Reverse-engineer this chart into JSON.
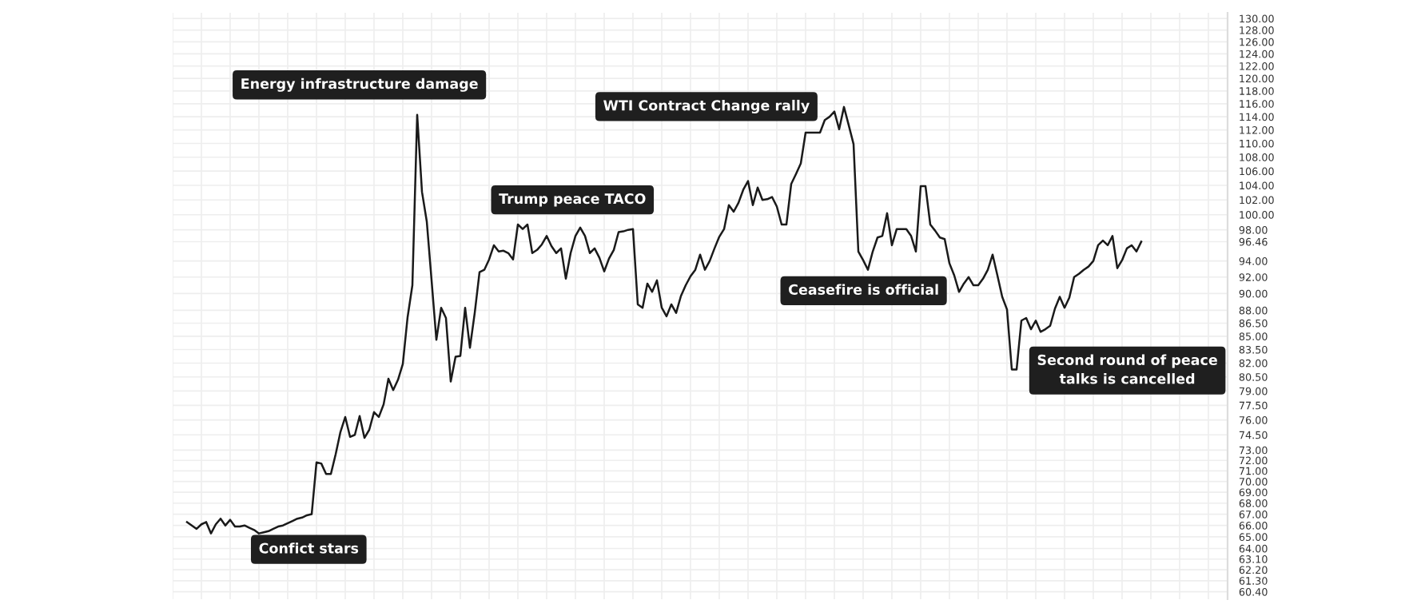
{
  "chart_data": {
    "type": "line",
    "log": true,
    "grid": true,
    "marker": "none",
    "line_style": "solid",
    "categories": [
      null,
      null,
      null,
      null,
      null,
      null,
      null,
      null,
      null,
      null,
      null,
      null,
      null,
      null,
      null,
      null,
      null,
      null,
      null,
      null,
      null,
      null,
      null,
      null,
      null,
      null,
      null,
      null,
      null,
      null,
      null,
      null,
      null,
      null,
      null,
      null,
      null,
      null,
      null,
      null,
      null,
      null,
      null,
      null,
      null,
      null,
      null,
      null,
      null,
      null,
      null,
      null,
      null,
      null,
      null,
      null,
      null,
      null,
      null,
      null,
      null,
      null,
      null,
      null,
      null,
      null,
      null,
      null,
      null,
      null,
      null,
      null,
      null,
      null,
      null,
      null,
      null,
      null,
      null,
      null,
      null,
      null,
      null,
      null,
      null,
      null,
      null,
      null,
      null,
      null,
      null,
      null,
      null,
      null,
      null,
      null,
      null,
      null,
      null,
      null,
      null,
      null,
      null,
      null,
      null,
      null,
      null,
      null,
      null,
      null,
      null,
      null,
      null,
      null,
      null,
      null,
      null,
      null,
      null,
      null,
      null,
      null,
      null,
      null,
      null,
      null,
      null,
      null,
      null,
      null,
      null,
      null,
      null,
      null,
      null,
      null,
      null,
      null,
      null,
      null,
      null,
      null,
      null,
      null,
      null,
      null,
      null,
      null,
      null,
      null,
      null,
      null,
      null,
      null,
      null,
      null,
      null,
      null,
      null,
      null,
      null,
      null,
      null,
      null,
      null,
      null,
      null,
      null,
      null,
      null,
      null,
      null,
      null,
      null,
      null,
      null,
      null,
      null,
      null,
      null,
      null,
      null,
      null,
      null,
      null,
      null,
      null,
      null,
      null,
      null,
      null,
      null,
      null,
      null,
      null,
      null,
      null,
      null,
      null,
      null
    ],
    "series": [
      {
        "color": "#1a1a1a",
        "values": [
          66.3,
          66.0,
          65.7,
          66.1,
          66.3,
          65.3,
          66.1,
          66.6,
          66.0,
          66.5,
          65.9,
          65.9,
          66.0,
          65.8,
          65.6,
          65.3,
          65.4,
          65.5,
          65.7,
          65.9,
          66.0,
          66.2,
          66.4,
          66.6,
          66.7,
          66.9,
          67.0,
          71.8,
          71.7,
          70.7,
          70.7,
          72.6,
          74.8,
          76.3,
          74.3,
          74.5,
          76.4,
          74.2,
          75.0,
          76.8,
          76.3,
          77.6,
          80.3,
          79.1,
          80.2,
          81.9,
          87.2,
          91.0,
          114.3,
          103.1,
          99.1,
          91.6,
          84.6,
          88.3,
          87.1,
          80.0,
          82.7,
          82.8,
          88.3,
          83.7,
          87.7,
          92.6,
          92.9,
          94.2,
          96.0,
          95.2,
          95.3,
          95.0,
          94.2,
          98.7,
          98.1,
          98.7,
          95.0,
          95.4,
          96.1,
          97.2,
          95.9,
          95.0,
          95.6,
          91.8,
          95.0,
          97.2,
          98.3,
          97.2,
          95.0,
          95.6,
          94.4,
          92.7,
          94.3,
          95.4,
          97.7,
          97.8,
          98.0,
          98.1,
          88.7,
          88.3,
          91.2,
          90.2,
          91.6,
          88.3,
          87.3,
          88.7,
          87.7,
          89.7,
          91.0,
          92.1,
          92.9,
          94.8,
          92.9,
          94.0,
          95.6,
          97.1,
          98.1,
          101.3,
          100.4,
          101.6,
          103.4,
          104.6,
          101.3,
          103.7,
          102.0,
          102.1,
          102.4,
          101.1,
          98.7,
          98.7,
          104.2,
          105.6,
          107.1,
          111.6,
          111.6,
          111.6,
          111.6,
          113.5,
          114.0,
          114.8,
          112.1,
          115.5,
          112.7,
          109.9,
          95.2,
          94.1,
          92.9,
          95.2,
          97.0,
          97.2,
          100.2,
          96.0,
          98.1,
          98.1,
          98.1,
          97.2,
          95.2,
          103.9,
          103.9,
          98.7,
          97.9,
          97.0,
          96.8,
          93.7,
          92.2,
          90.2,
          91.2,
          92.0,
          91.0,
          91.0,
          91.8,
          92.9,
          94.8,
          92.2,
          89.6,
          88.1,
          81.3,
          81.3,
          86.8,
          87.1,
          85.8,
          86.8,
          85.5,
          85.8,
          86.2,
          88.2,
          89.6,
          88.3,
          89.5,
          92.0,
          92.4,
          92.9,
          93.3,
          94.0,
          96.0,
          96.6,
          96.0,
          97.2,
          93.1,
          94.1,
          95.6,
          96.0,
          95.2,
          96.46
        ]
      }
    ],
    "ylim": [
      59.8,
      131
    ],
    "yticks": [
      {
        "value": 130,
        "label": "130.00"
      },
      {
        "value": 128,
        "label": "128.00"
      },
      {
        "value": 126,
        "label": "126.00"
      },
      {
        "value": 124,
        "label": "124.00"
      },
      {
        "value": 122,
        "label": "122.00"
      },
      {
        "value": 120,
        "label": "120.00"
      },
      {
        "value": 118,
        "label": "118.00"
      },
      {
        "value": 116,
        "label": "116.00"
      },
      {
        "value": 114,
        "label": "114.00"
      },
      {
        "value": 112,
        "label": "112.00"
      },
      {
        "value": 110,
        "label": "110.00"
      },
      {
        "value": 108,
        "label": "108.00"
      },
      {
        "value": 106,
        "label": "106.00"
      },
      {
        "value": 104,
        "label": "104.00"
      },
      {
        "value": 102,
        "label": "102.00"
      },
      {
        "value": 100,
        "label": "100.00"
      },
      {
        "value": 98,
        "label": "98.00"
      },
      {
        "value": 96.46,
        "label": "96.46"
      },
      {
        "value": 94,
        "label": "94.00"
      },
      {
        "value": 92,
        "label": "92.00"
      },
      {
        "value": 90,
        "label": "90.00"
      },
      {
        "value": 88,
        "label": "88.00"
      },
      {
        "value": 86.5,
        "label": "86.50"
      },
      {
        "value": 85,
        "label": "85.00"
      },
      {
        "value": 83.5,
        "label": "83.50"
      },
      {
        "value": 82,
        "label": "82.00"
      },
      {
        "value": 80.5,
        "label": "80.50"
      },
      {
        "value": 79,
        "label": "79.00"
      },
      {
        "value": 77.5,
        "label": "77.50"
      },
      {
        "value": 76,
        "label": "76.00"
      },
      {
        "value": 74.5,
        "label": "74.50"
      },
      {
        "value": 73,
        "label": "73.00"
      },
      {
        "value": 72,
        "label": "72.00"
      },
      {
        "value": 71,
        "label": "71.00"
      },
      {
        "value": 70,
        "label": "70.00"
      },
      {
        "value": 69,
        "label": "69.00"
      },
      {
        "value": 68,
        "label": "68.00"
      },
      {
        "value": 67,
        "label": "67.00"
      },
      {
        "value": 66,
        "label": "66.00"
      },
      {
        "value": 65,
        "label": "65.00"
      },
      {
        "value": 64,
        "label": "64.00"
      },
      {
        "value": 63.1,
        "label": "63.10"
      },
      {
        "value": 62.2,
        "label": "62.20"
      },
      {
        "value": 61.3,
        "label": "61.30"
      },
      {
        "value": 60.4,
        "label": "60.40"
      }
    ],
    "annotations": [
      "Confict stars",
      "Energy infrastructure damage",
      "Trump peace TACO",
      "WTI Contract Change rally",
      "Ceasefire is official",
      "Second round of peace\ntalks is cancelled"
    ]
  }
}
